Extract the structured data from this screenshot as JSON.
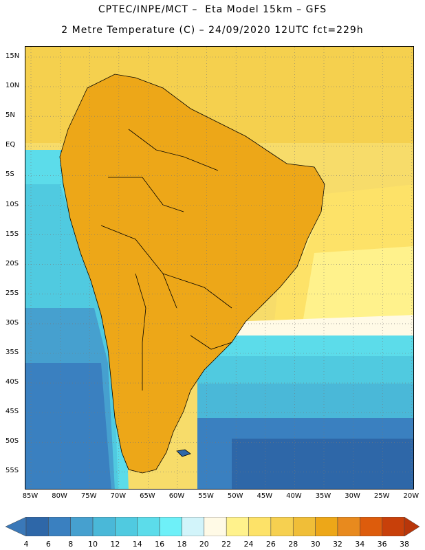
{
  "header": {
    "title_line1": "CPTEC/INPE/MCT –  Eta Model 15km – GFS",
    "title_line2": "2 Metre Temperature (C) – 24/09/2020 12UTC fct=229h"
  },
  "map": {
    "lat_labels": [
      "15N",
      "10N",
      "5N",
      "EQ",
      "5S",
      "10S",
      "15S",
      "20S",
      "25S",
      "30S",
      "35S",
      "40S",
      "45S",
      "50S",
      "55S"
    ],
    "lon_labels": [
      "85W",
      "80W",
      "75W",
      "70W",
      "65W",
      "60W",
      "55W",
      "50W",
      "45W",
      "40W",
      "35W",
      "30W",
      "25W",
      "20W"
    ]
  },
  "colorbar": {
    "labels": [
      "4",
      "6",
      "8",
      "10",
      "12",
      "14",
      "16",
      "18",
      "20",
      "22",
      "24",
      "26",
      "28",
      "30",
      "32",
      "34",
      "36",
      "38"
    ],
    "colors": {
      "below": "#3a78b8",
      "c4_6": "#2e67a8",
      "c6_8": "#3a80c0",
      "c8_10": "#46a0cf",
      "c10_12": "#4ab8d8",
      "c12_14": "#50cae0",
      "c14_16": "#5cdcea",
      "c16_18": "#6ef0f8",
      "c18_20": "#d2f4fa",
      "c20_22": "#fffae6",
      "c22_24": "#fff28c",
      "c24_26": "#fde268",
      "c26_28": "#f6d050",
      "c28_30": "#f0be38",
      "c30_32": "#eda718",
      "c32_34": "#e88a1e",
      "c34_36": "#dd5c0c",
      "c36_38": "#c8400a",
      "above": "#b8360a"
    }
  }
}
